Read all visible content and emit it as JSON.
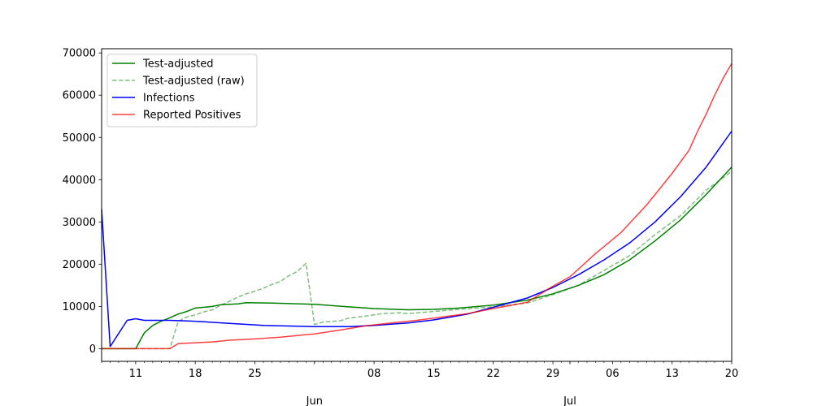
{
  "chart_data": {
    "type": "line",
    "title": "",
    "xlabel": "",
    "ylabel": "",
    "xlim": [
      "2020-05-07",
      "2020-07-20"
    ],
    "ylim": [
      -3000,
      71000
    ],
    "grid": false,
    "legend_position": "top-left",
    "y_ticks": [
      0,
      10000,
      20000,
      30000,
      40000,
      50000,
      60000,
      70000
    ],
    "x_ticks": [
      {
        "date": "2020-05-11",
        "label": "11"
      },
      {
        "date": "2020-05-18",
        "label": "18"
      },
      {
        "date": "2020-05-25",
        "label": "25"
      },
      {
        "date": "2020-06-08",
        "label": "08"
      },
      {
        "date": "2020-06-15",
        "label": "15"
      },
      {
        "date": "2020-06-22",
        "label": "22"
      },
      {
        "date": "2020-06-29",
        "label": "29"
      },
      {
        "date": "2020-07-06",
        "label": "06"
      },
      {
        "date": "2020-07-13",
        "label": "13"
      },
      {
        "date": "2020-07-20",
        "label": "20"
      }
    ],
    "month_labels": [
      {
        "date": "2020-06-01",
        "label": "Jun"
      },
      {
        "date": "2020-07-01",
        "label": "Jul"
      }
    ],
    "series": [
      {
        "name": "Test-adjusted",
        "color": "#008000",
        "style": "solid",
        "points": [
          [
            "2020-05-07",
            0
          ],
          [
            "2020-05-11",
            0
          ],
          [
            "2020-05-12",
            3700
          ],
          [
            "2020-05-13",
            5500
          ],
          [
            "2020-05-14",
            6500
          ],
          [
            "2020-05-15",
            7300
          ],
          [
            "2020-05-16",
            8200
          ],
          [
            "2020-05-17",
            8800
          ],
          [
            "2020-05-18",
            9600
          ],
          [
            "2020-05-20",
            10000
          ],
          [
            "2020-05-21",
            10400
          ],
          [
            "2020-05-23",
            10600
          ],
          [
            "2020-05-24",
            10900
          ],
          [
            "2020-05-27",
            10800
          ],
          [
            "2020-06-01",
            10500
          ],
          [
            "2020-06-05",
            9900
          ],
          [
            "2020-06-08",
            9500
          ],
          [
            "2020-06-12",
            9200
          ],
          [
            "2020-06-15",
            9300
          ],
          [
            "2020-06-18",
            9600
          ],
          [
            "2020-06-22",
            10300
          ],
          [
            "2020-06-26",
            11500
          ],
          [
            "2020-06-29",
            13000
          ],
          [
            "2020-07-02",
            15000
          ],
          [
            "2020-07-05",
            17500
          ],
          [
            "2020-07-08",
            21000
          ],
          [
            "2020-07-11",
            25500
          ],
          [
            "2020-07-14",
            30500
          ],
          [
            "2020-07-17",
            36500
          ],
          [
            "2020-07-20",
            43000
          ]
        ]
      },
      {
        "name": "Test-adjusted (raw)",
        "color": "#008000",
        "style": "dashed",
        "points": [
          [
            "2020-05-07",
            0
          ],
          [
            "2020-05-15",
            0
          ],
          [
            "2020-05-16",
            6500
          ],
          [
            "2020-05-17",
            7500
          ],
          [
            "2020-05-18",
            8000
          ],
          [
            "2020-05-19",
            8700
          ],
          [
            "2020-05-20",
            9200
          ],
          [
            "2020-05-21",
            10300
          ],
          [
            "2020-05-22",
            11200
          ],
          [
            "2020-05-23",
            12200
          ],
          [
            "2020-05-24",
            13000
          ],
          [
            "2020-05-25",
            13600
          ],
          [
            "2020-05-26",
            14300
          ],
          [
            "2020-05-27",
            15200
          ],
          [
            "2020-05-28",
            15900
          ],
          [
            "2020-05-29",
            17300
          ],
          [
            "2020-05-30",
            18300
          ],
          [
            "2020-05-31",
            20200
          ],
          [
            "2020-06-01",
            5700
          ],
          [
            "2020-06-02",
            6300
          ],
          [
            "2020-06-04",
            6600
          ],
          [
            "2020-06-05",
            7200
          ],
          [
            "2020-06-07",
            7700
          ],
          [
            "2020-06-09",
            8300
          ],
          [
            "2020-06-11",
            8500
          ],
          [
            "2020-06-12",
            8300
          ],
          [
            "2020-06-15",
            8800
          ],
          [
            "2020-06-18",
            9300
          ],
          [
            "2020-06-22",
            9900
          ],
          [
            "2020-06-26",
            10800
          ],
          [
            "2020-06-29",
            12800
          ],
          [
            "2020-07-02",
            15000
          ],
          [
            "2020-07-05",
            18500
          ],
          [
            "2020-07-08",
            22000
          ],
          [
            "2020-07-11",
            27000
          ],
          [
            "2020-07-14",
            31500
          ],
          [
            "2020-07-17",
            37500
          ],
          [
            "2020-07-20",
            42000
          ]
        ]
      },
      {
        "name": "Infections",
        "color": "#0000ff",
        "style": "solid",
        "points": [
          [
            "2020-05-07",
            33000
          ],
          [
            "2020-05-08",
            500
          ],
          [
            "2020-05-10",
            6700
          ],
          [
            "2020-05-11",
            7100
          ],
          [
            "2020-05-12",
            6700
          ],
          [
            "2020-05-15",
            6700
          ],
          [
            "2020-05-18",
            6500
          ],
          [
            "2020-05-22",
            6000
          ],
          [
            "2020-05-26",
            5500
          ],
          [
            "2020-06-01",
            5200
          ],
          [
            "2020-06-05",
            5200
          ],
          [
            "2020-06-08",
            5500
          ],
          [
            "2020-06-12",
            6100
          ],
          [
            "2020-06-15",
            6800
          ],
          [
            "2020-06-19",
            8200
          ],
          [
            "2020-06-22",
            9800
          ],
          [
            "2020-06-26",
            12000
          ],
          [
            "2020-06-29",
            14500
          ],
          [
            "2020-07-02",
            17500
          ],
          [
            "2020-07-05",
            21000
          ],
          [
            "2020-07-08",
            25000
          ],
          [
            "2020-07-11",
            30000
          ],
          [
            "2020-07-14",
            36000
          ],
          [
            "2020-07-17",
            43000
          ],
          [
            "2020-07-20",
            51500
          ]
        ]
      },
      {
        "name": "Reported Positives",
        "color": "#ff0000",
        "style": "solid",
        "points": [
          [
            "2020-05-07",
            0
          ],
          [
            "2020-05-15",
            0
          ],
          [
            "2020-05-16",
            1200
          ],
          [
            "2020-05-18",
            1400
          ],
          [
            "2020-05-20",
            1600
          ],
          [
            "2020-05-22",
            2000
          ],
          [
            "2020-05-25",
            2300
          ],
          [
            "2020-05-28",
            2700
          ],
          [
            "2020-06-01",
            3500
          ],
          [
            "2020-06-04",
            4400
          ],
          [
            "2020-06-07",
            5400
          ],
          [
            "2020-06-10",
            6100
          ],
          [
            "2020-06-13",
            6700
          ],
          [
            "2020-06-16",
            7500
          ],
          [
            "2020-06-19",
            8300
          ],
          [
            "2020-06-22",
            9500
          ],
          [
            "2020-06-26",
            11000
          ],
          [
            "2020-06-29",
            14800
          ],
          [
            "2020-07-01",
            17000
          ],
          [
            "2020-07-04",
            22500
          ],
          [
            "2020-07-07",
            27500
          ],
          [
            "2020-07-10",
            34000
          ],
          [
            "2020-07-13",
            41500
          ],
          [
            "2020-07-15",
            47000
          ],
          [
            "2020-07-16",
            51500
          ],
          [
            "2020-07-17",
            55500
          ],
          [
            "2020-07-18",
            60000
          ],
          [
            "2020-07-19",
            64000
          ],
          [
            "2020-07-20",
            67500
          ]
        ]
      }
    ]
  }
}
